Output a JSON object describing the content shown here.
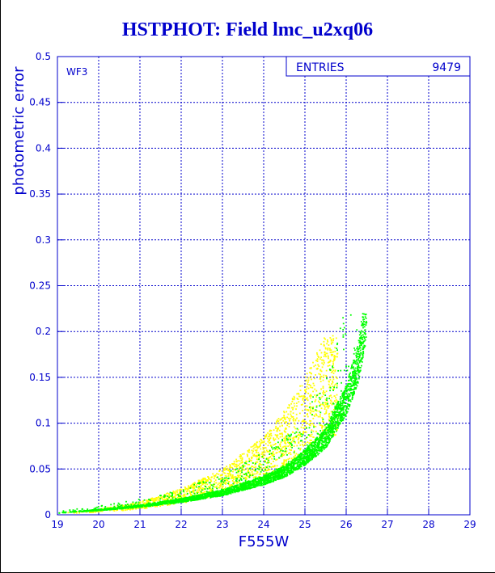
{
  "chart_data": {
    "type": "scatter",
    "title": "HSTPHOT: Field lmc_u2xq06",
    "xlabel": "F555W",
    "ylabel": "photometric error",
    "xlim": [
      19,
      29
    ],
    "ylim": [
      0,
      0.5
    ],
    "xticks": [
      "19",
      "20",
      "21",
      "22",
      "23",
      "24",
      "25",
      "26",
      "27",
      "28",
      "29"
    ],
    "yticks": [
      "0",
      "0.05",
      "0.1",
      "0.15",
      "0.2",
      "0.25",
      "0.3",
      "0.35",
      "0.4",
      "0.45",
      "0.5"
    ],
    "grid": true,
    "annotation": "WF3",
    "stats_box": {
      "label": "ENTRIES",
      "value": "9479"
    },
    "series": [
      {
        "color": "#ffff00",
        "trend": [
          [
            19.2,
            0.002
          ],
          [
            20,
            0.004
          ],
          [
            21,
            0.009
          ],
          [
            22,
            0.018
          ],
          [
            23,
            0.032
          ],
          [
            24,
            0.054
          ],
          [
            24.5,
            0.072
          ],
          [
            25,
            0.095
          ],
          [
            25.5,
            0.125
          ]
        ],
        "x_range": [
          19.2,
          25.8
        ],
        "max_y": 0.22
      },
      {
        "color": "#00ff00",
        "trend": [
          [
            19,
            0.002
          ],
          [
            20,
            0.005
          ],
          [
            21,
            0.009
          ],
          [
            22,
            0.015
          ],
          [
            23,
            0.023
          ],
          [
            24,
            0.036
          ],
          [
            24.5,
            0.045
          ],
          [
            25,
            0.06
          ],
          [
            25.5,
            0.08
          ],
          [
            26,
            0.12
          ],
          [
            26.3,
            0.16
          ],
          [
            26.5,
            0.215
          ]
        ],
        "x_range": [
          19,
          26.5
        ],
        "max_y": 0.22
      }
    ]
  },
  "colors": {
    "frame": "#0000cc",
    "grid": "#0000cc",
    "text": "#0000cc"
  }
}
